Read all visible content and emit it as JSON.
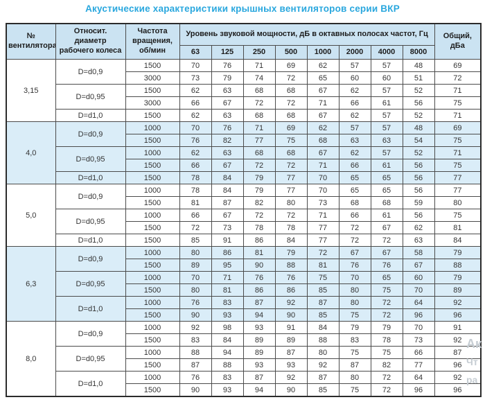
{
  "title": "Акустические характеристики крышных вентиляторов серии ВКР",
  "colors": {
    "title_accent": "#29a7de",
    "header_bg": "#cbe3f2",
    "band_bg": "#daedf8",
    "border": "#4a4a4a"
  },
  "watermark": {
    "fragments": [
      "Ак",
      "Чт",
      "ра"
    ]
  },
  "table": {
    "headers": {
      "fan": "№ вентилятора",
      "diameter": "Относит. диаметр рабочего колеса",
      "rpm": "Частота вращения, об/мин",
      "span": "Уровень звуковой мощности, дБ в октавных полосах частот, Гц",
      "freqs": [
        "63",
        "125",
        "250",
        "500",
        "1000",
        "2000",
        "4000",
        "8000"
      ],
      "total": "Общий, дБа"
    },
    "sections": [
      {
        "fan": "3,15",
        "shade": false,
        "groups": [
          {
            "diameter": "D=d0,9",
            "rows": [
              {
                "rpm": "1500",
                "values": [
                  70,
                  76,
                  71,
                  69,
                  62,
                  57,
                  57,
                  48
                ],
                "total": 69
              },
              {
                "rpm": "3000",
                "values": [
                  73,
                  79,
                  74,
                  72,
                  65,
                  60,
                  60,
                  51
                ],
                "total": 72
              }
            ]
          },
          {
            "diameter": "D=d0,95",
            "rows": [
              {
                "rpm": "1500",
                "values": [
                  62,
                  63,
                  68,
                  68,
                  67,
                  62,
                  57,
                  52
                ],
                "total": 71
              },
              {
                "rpm": "3000",
                "values": [
                  66,
                  67,
                  72,
                  72,
                  71,
                  66,
                  61,
                  56
                ],
                "total": 75
              }
            ]
          },
          {
            "diameter": "D=d1,0",
            "rows": [
              {
                "rpm": "1500",
                "values": [
                  62,
                  63,
                  68,
                  68,
                  67,
                  62,
                  57,
                  52
                ],
                "total": 71
              }
            ]
          }
        ]
      },
      {
        "fan": "4,0",
        "shade": true,
        "groups": [
          {
            "diameter": "D=d0,9",
            "rows": [
              {
                "rpm": "1000",
                "values": [
                  70,
                  76,
                  71,
                  69,
                  62,
                  57,
                  57,
                  48
                ],
                "total": 69
              },
              {
                "rpm": "1500",
                "values": [
                  76,
                  82,
                  77,
                  75,
                  68,
                  63,
                  63,
                  54
                ],
                "total": 75
              }
            ]
          },
          {
            "diameter": "D=d0,95",
            "rows": [
              {
                "rpm": "1000",
                "values": [
                  62,
                  63,
                  68,
                  68,
                  67,
                  62,
                  57,
                  52
                ],
                "total": 71
              },
              {
                "rpm": "1500",
                "values": [
                  66,
                  67,
                  72,
                  72,
                  71,
                  66,
                  61,
                  56
                ],
                "total": 75
              }
            ]
          },
          {
            "diameter": "D=d1,0",
            "rows": [
              {
                "rpm": "1500",
                "values": [
                  78,
                  84,
                  79,
                  77,
                  70,
                  65,
                  65,
                  56
                ],
                "total": 77
              }
            ]
          }
        ]
      },
      {
        "fan": "5,0",
        "shade": false,
        "groups": [
          {
            "diameter": "D=d0,9",
            "rows": [
              {
                "rpm": "1000",
                "values": [
                  78,
                  84,
                  79,
                  77,
                  70,
                  65,
                  65,
                  56
                ],
                "total": 77
              },
              {
                "rpm": "1500",
                "values": [
                  81,
                  87,
                  82,
                  80,
                  73,
                  68,
                  68,
                  59
                ],
                "total": 80
              }
            ]
          },
          {
            "diameter": "D=d0,95",
            "rows": [
              {
                "rpm": "1000",
                "values": [
                  66,
                  67,
                  72,
                  72,
                  71,
                  66,
                  61,
                  56
                ],
                "total": 75
              },
              {
                "rpm": "1500",
                "values": [
                  72,
                  73,
                  78,
                  78,
                  77,
                  72,
                  67,
                  62
                ],
                "total": 81
              }
            ]
          },
          {
            "diameter": "D=d1,0",
            "rows": [
              {
                "rpm": "1500",
                "values": [
                  85,
                  91,
                  86,
                  84,
                  77,
                  72,
                  72,
                  63
                ],
                "total": 84
              }
            ]
          }
        ]
      },
      {
        "fan": "6,3",
        "shade": true,
        "groups": [
          {
            "diameter": "D=d0,9",
            "rows": [
              {
                "rpm": "1000",
                "values": [
                  80,
                  86,
                  81,
                  79,
                  72,
                  67,
                  67,
                  58
                ],
                "total": 79
              },
              {
                "rpm": "1500",
                "values": [
                  89,
                  95,
                  90,
                  88,
                  81,
                  76,
                  76,
                  67
                ],
                "total": 88
              }
            ]
          },
          {
            "diameter": "D=d0,95",
            "rows": [
              {
                "rpm": "1000",
                "values": [
                  70,
                  71,
                  76,
                  76,
                  75,
                  70,
                  65,
                  60
                ],
                "total": 79
              },
              {
                "rpm": "1500",
                "values": [
                  80,
                  81,
                  86,
                  86,
                  85,
                  80,
                  75,
                  70
                ],
                "total": 89
              }
            ]
          },
          {
            "diameter": "D=d1,0",
            "rows": [
              {
                "rpm": "1000",
                "values": [
                  76,
                  83,
                  87,
                  92,
                  87,
                  80,
                  72,
                  64
                ],
                "total": 92
              },
              {
                "rpm": "1500",
                "values": [
                  90,
                  93,
                  94,
                  90,
                  85,
                  75,
                  72,
                  96
                ],
                "total": 96
              }
            ]
          }
        ]
      },
      {
        "fan": "8,0",
        "shade": false,
        "groups": [
          {
            "diameter": "D=d0,9",
            "rows": [
              {
                "rpm": "1000",
                "values": [
                  92,
                  98,
                  93,
                  91,
                  84,
                  79,
                  79,
                  70
                ],
                "total": 91
              },
              {
                "rpm": "1500",
                "values": [
                  83,
                  84,
                  89,
                  89,
                  88,
                  83,
                  78,
                  73
                ],
                "total": 92
              }
            ]
          },
          {
            "diameter": "D=d0,95",
            "rows": [
              {
                "rpm": "1000",
                "values": [
                  88,
                  94,
                  89,
                  87,
                  80,
                  75,
                  75,
                  66
                ],
                "total": 87
              },
              {
                "rpm": "1500",
                "values": [
                  87,
                  88,
                  93,
                  93,
                  92,
                  87,
                  82,
                  77
                ],
                "total": 96
              }
            ]
          },
          {
            "diameter": "D=d1,0",
            "rows": [
              {
                "rpm": "1000",
                "values": [
                  76,
                  83,
                  87,
                  92,
                  87,
                  80,
                  72,
                  64
                ],
                "total": 92
              },
              {
                "rpm": "1500",
                "values": [
                  90,
                  93,
                  94,
                  90,
                  85,
                  75,
                  72,
                  96
                ],
                "total": 96
              }
            ]
          }
        ]
      }
    ]
  }
}
